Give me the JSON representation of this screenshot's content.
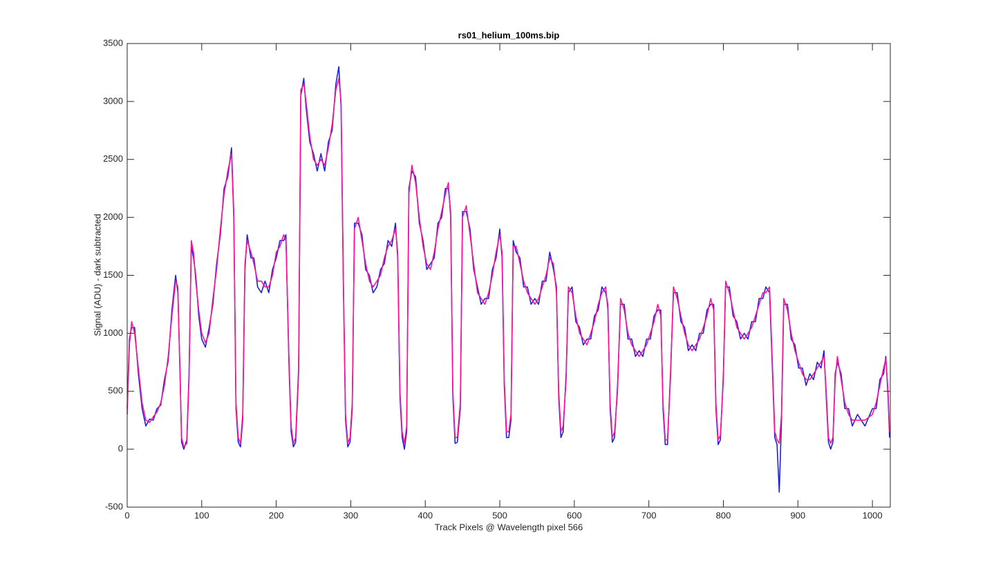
{
  "chart_data": {
    "type": "line",
    "title": "rs01_helium_100ms.bip",
    "xlabel": "Track Pixels @ Wavelength pixel 566",
    "ylabel": "Signal (ADU) - dark subtracted",
    "xlim": [
      0,
      1024
    ],
    "ylim": [
      -500,
      3500
    ],
    "xticks": [
      0,
      100,
      200,
      300,
      400,
      500,
      600,
      700,
      800,
      900,
      1000
    ],
    "yticks": [
      -500,
      0,
      500,
      1000,
      1500,
      2000,
      2500,
      3000,
      3500
    ],
    "x": [
      0,
      3,
      6,
      10,
      15,
      20,
      25,
      30,
      35,
      40,
      45,
      50,
      55,
      60,
      65,
      68,
      71,
      73,
      76,
      80,
      83,
      86,
      89,
      92,
      96,
      100,
      105,
      110,
      115,
      120,
      125,
      130,
      135,
      140,
      143,
      146,
      149,
      152,
      155,
      158,
      161,
      166,
      170,
      175,
      180,
      185,
      190,
      195,
      200,
      205,
      210,
      213,
      217,
      220,
      223,
      226,
      230,
      233,
      237,
      240,
      245,
      250,
      255,
      260,
      265,
      270,
      275,
      280,
      284,
      287,
      290,
      293,
      296,
      299,
      302,
      305,
      310,
      315,
      320,
      325,
      330,
      335,
      340,
      345,
      350,
      355,
      360,
      363,
      366,
      369,
      372,
      375,
      378,
      382,
      387,
      392,
      397,
      402,
      407,
      412,
      417,
      422,
      427,
      431,
      434,
      437,
      440,
      443,
      447,
      450,
      455,
      460,
      465,
      470,
      475,
      480,
      485,
      490,
      495,
      500,
      503,
      506,
      509,
      512,
      515,
      518,
      522,
      527,
      532,
      537,
      542,
      547,
      552,
      557,
      562,
      567,
      572,
      576,
      579,
      582,
      585,
      589,
      592,
      597,
      602,
      607,
      612,
      617,
      622,
      627,
      632,
      637,
      642,
      645,
      648,
      651,
      654,
      658,
      662,
      667,
      672,
      677,
      682,
      687,
      692,
      697,
      702,
      707,
      712,
      716,
      719,
      722,
      725,
      729,
      733,
      738,
      743,
      748,
      753,
      758,
      763,
      768,
      773,
      778,
      783,
      787,
      790,
      793,
      796,
      800,
      803,
      808,
      813,
      818,
      823,
      828,
      833,
      838,
      843,
      848,
      853,
      857,
      862,
      866,
      869,
      872,
      875,
      878,
      881,
      886,
      891,
      896,
      901,
      906,
      911,
      916,
      921,
      926,
      931,
      935,
      938,
      941,
      944,
      947,
      950,
      953,
      958,
      963,
      968,
      973,
      980,
      990,
      1000,
      1005,
      1010,
      1015,
      1018,
      1021,
      1023
    ],
    "series": [
      {
        "color": "#1f1fe0",
        "values": [
          350,
          950,
          1050,
          1050,
          650,
          350,
          200,
          260,
          250,
          350,
          380,
          600,
          760,
          1200,
          1500,
          1350,
          650,
          60,
          0,
          80,
          650,
          1750,
          1650,
          1500,
          1150,
          950,
          880,
          1050,
          1250,
          1600,
          1850,
          2250,
          2350,
          2600,
          2050,
          350,
          60,
          20,
          250,
          1550,
          1850,
          1650,
          1650,
          1400,
          1350,
          1450,
          1350,
          1550,
          1650,
          1800,
          1800,
          1850,
          750,
          150,
          20,
          60,
          650,
          3050,
          3200,
          2950,
          2650,
          2550,
          2400,
          2550,
          2400,
          2650,
          2750,
          3150,
          3300,
          2950,
          1450,
          250,
          20,
          60,
          350,
          1950,
          1950,
          1850,
          1550,
          1500,
          1350,
          1400,
          1550,
          1600,
          1800,
          1750,
          1950,
          1650,
          450,
          100,
          0,
          150,
          2250,
          2400,
          2350,
          1950,
          1800,
          1550,
          1600,
          1650,
          1950,
          2000,
          2250,
          2250,
          2050,
          450,
          50,
          60,
          350,
          2050,
          2050,
          1900,
          1550,
          1400,
          1250,
          1300,
          1300,
          1550,
          1650,
          1900,
          1650,
          550,
          100,
          100,
          250,
          1800,
          1700,
          1650,
          1400,
          1400,
          1250,
          1300,
          1250,
          1450,
          1450,
          1700,
          1550,
          1400,
          450,
          100,
          150,
          650,
          1350,
          1400,
          1100,
          1050,
          900,
          950,
          950,
          1150,
          1200,
          1400,
          1350,
          1250,
          350,
          60,
          100,
          550,
          1250,
          1250,
          950,
          950,
          800,
          850,
          800,
          950,
          950,
          1150,
          1200,
          1200,
          350,
          40,
          40,
          650,
          1350,
          1350,
          1100,
          1050,
          850,
          900,
          850,
          1000,
          1000,
          1200,
          1250,
          1250,
          350,
          40,
          80,
          650,
          1400,
          1400,
          1150,
          1100,
          950,
          1000,
          950,
          1100,
          1100,
          1300,
          1300,
          1400,
          1350,
          650,
          100,
          40,
          -370,
          250,
          1250,
          1250,
          950,
          900,
          700,
          700,
          550,
          650,
          600,
          750,
          700,
          850,
          450,
          60,
          0,
          60,
          650,
          750,
          650,
          350,
          350,
          200,
          300,
          200,
          350,
          350,
          600,
          650,
          800,
          450,
          100
        ]
      },
      {
        "color": "#ff1493",
        "values": [
          300,
          900,
          1100,
          1000,
          700,
          400,
          250,
          230,
          280,
          320,
          400,
          550,
          800,
          1150,
          1450,
          1400,
          600,
          100,
          20,
          50,
          600,
          1800,
          1700,
          1450,
          1200,
          1000,
          920,
          1000,
          1300,
          1550,
          1900,
          2200,
          2400,
          2550,
          2000,
          400,
          100,
          50,
          300,
          1600,
          1800,
          1700,
          1600,
          1450,
          1450,
          1400,
          1400,
          1500,
          1700,
          1750,
          1850,
          1800,
          800,
          200,
          50,
          100,
          700,
          3100,
          3150,
          3000,
          2700,
          2500,
          2450,
          2500,
          2450,
          2600,
          2800,
          3100,
          3200,
          3000,
          1500,
          300,
          50,
          100,
          400,
          1900,
          2000,
          1800,
          1600,
          1450,
          1400,
          1450,
          1500,
          1650,
          1750,
          1800,
          1900,
          1700,
          500,
          150,
          50,
          200,
          2200,
          2450,
          2300,
          2000,
          1750,
          1600,
          1550,
          1700,
          1900,
          2050,
          2200,
          2300,
          2000,
          500,
          100,
          100,
          400,
          2000,
          2100,
          1850,
          1600,
          1350,
          1300,
          1250,
          1350,
          1500,
          1700,
          1850,
          1700,
          600,
          150,
          150,
          300,
          1750,
          1750,
          1600,
          1450,
          1350,
          1300,
          1250,
          1300,
          1400,
          1500,
          1650,
          1600,
          1350,
          500,
          150,
          200,
          600,
          1400,
          1350,
          1150,
          1000,
          950,
          900,
          1000,
          1100,
          1250,
          1350,
          1400,
          1200,
          400,
          100,
          150,
          500,
          1300,
          1200,
          1000,
          900,
          850,
          800,
          850,
          900,
          1000,
          1100,
          1250,
          1150,
          400,
          80,
          80,
          600,
          1400,
          1300,
          1150,
          1000,
          900,
          850,
          900,
          950,
          1050,
          1150,
          1300,
          1200,
          400,
          80,
          120,
          600,
          1450,
          1350,
          1200,
          1050,
          1000,
          950,
          1000,
          1050,
          1150,
          1250,
          1350,
          1350,
          1400,
          700,
          150,
          80,
          50,
          300,
          1300,
          1200,
          1000,
          850,
          750,
          650,
          600,
          600,
          650,
          700,
          750,
          800,
          500,
          100,
          50,
          100,
          600,
          800,
          600,
          400,
          300,
          250,
          250,
          250,
          300,
          400,
          550,
          700,
          780,
          500,
          150
        ]
      }
    ]
  }
}
